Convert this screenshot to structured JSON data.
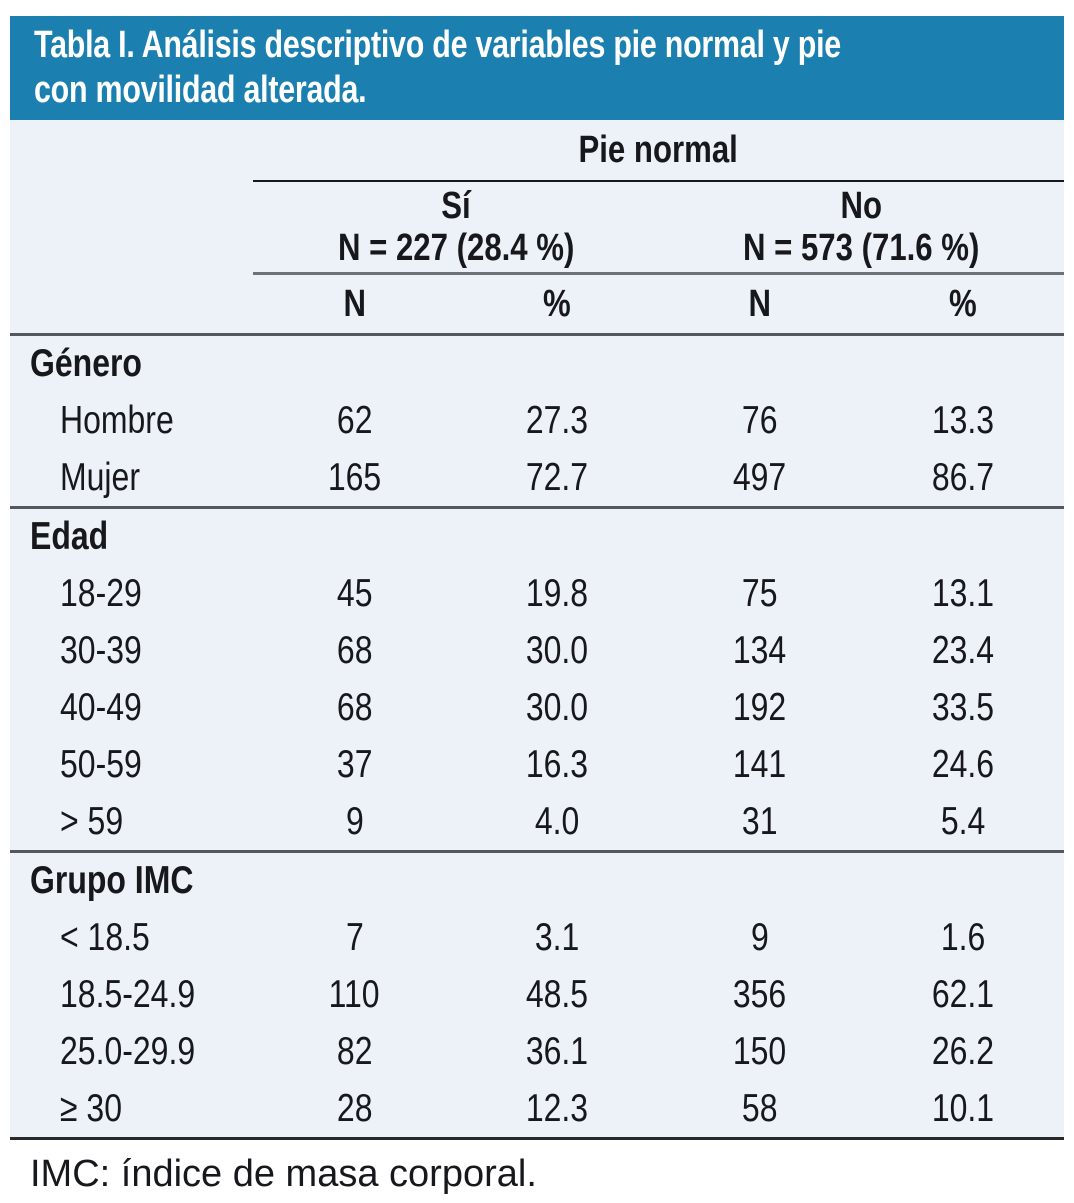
{
  "title": {
    "line1": "Tabla I. Análisis descriptivo de variables pie normal y pie",
    "line2": "con movilidad alterada."
  },
  "table": {
    "header": {
      "group_label": "Pie normal",
      "subgroups": [
        {
          "label": "Sí",
          "n_label": "N = 227 (28.4 %)"
        },
        {
          "label": "No",
          "n_label": "N = 573 (71.6 %)"
        }
      ],
      "columns": [
        "N",
        "%",
        "N",
        "%"
      ]
    },
    "sections": [
      {
        "label": "Género",
        "rows": [
          {
            "label": "Hombre",
            "values": [
              "62",
              "27.3",
              "76",
              "13.3"
            ]
          },
          {
            "label": "Mujer",
            "values": [
              "165",
              "72.7",
              "497",
              "86.7"
            ]
          }
        ]
      },
      {
        "label": "Edad",
        "rows": [
          {
            "label": "18-29",
            "values": [
              "45",
              "19.8",
              "75",
              "13.1"
            ]
          },
          {
            "label": "30-39",
            "values": [
              "68",
              "30.0",
              "134",
              "23.4"
            ]
          },
          {
            "label": "40-49",
            "values": [
              "68",
              "30.0",
              "192",
              "33.5"
            ]
          },
          {
            "label": "50-59",
            "values": [
              "37",
              "16.3",
              "141",
              "24.6"
            ]
          },
          {
            "label": "> 59",
            "values": [
              "9",
              "4.0",
              "31",
              "5.4"
            ]
          }
        ]
      },
      {
        "label": "Grupo IMC",
        "rows": [
          {
            "label": "< 18.5",
            "values": [
              "7",
              "3.1",
              "9",
              "1.6"
            ]
          },
          {
            "label": "18.5-24.9",
            "values": [
              "110",
              "48.5",
              "356",
              "62.1"
            ]
          },
          {
            "label": "25.0-29.9",
            "values": [
              "82",
              "36.1",
              "150",
              "26.2"
            ]
          },
          {
            "label": "≥ 30",
            "values": [
              "28",
              "12.3",
              "58",
              "10.1"
            ]
          }
        ]
      }
    ],
    "footnote": "IMC: índice de masa corporal."
  },
  "colors": {
    "title_bg": "#1b80b0",
    "title_text": "#ffffff",
    "body_bg": "#edf1f8",
    "text": "#17181c",
    "rule_dark": "#17181c",
    "rule_gray": "#6d7278",
    "rule_section": "#54585e"
  }
}
